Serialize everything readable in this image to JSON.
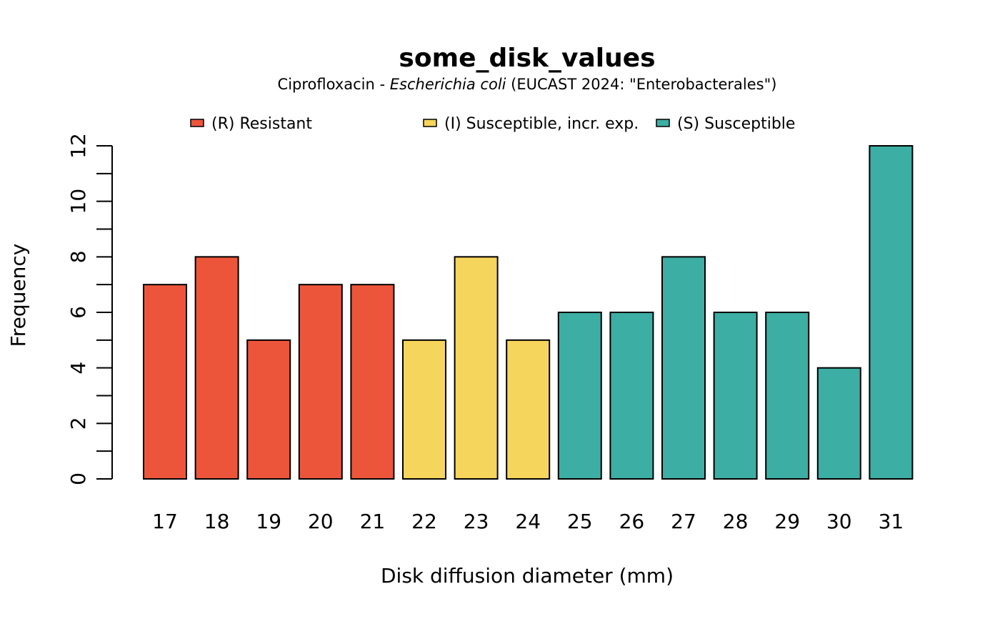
{
  "chart_data": {
    "type": "bar",
    "title": "some_disk_values",
    "subtitle": {
      "prefix": "Ciprofloxacin - ",
      "organism": "Escherichia coli",
      "suffix": " (EUCAST 2024: \"Enterobacterales\")"
    },
    "xlabel": "Disk diffusion diameter (mm)",
    "ylabel": "Frequency",
    "ylim": [
      0,
      12
    ],
    "y_ticks": [
      0,
      2,
      4,
      6,
      8,
      10,
      12
    ],
    "y_minor_ticks": [
      1,
      3,
      5,
      7,
      9,
      11
    ],
    "categories": [
      "17",
      "18",
      "19",
      "20",
      "21",
      "22",
      "23",
      "24",
      "25",
      "26",
      "27",
      "28",
      "29",
      "30",
      "31"
    ],
    "values": [
      7,
      8,
      5,
      7,
      7,
      5,
      8,
      5,
      6,
      6,
      8,
      6,
      6,
      4,
      12
    ],
    "bar_interpretation": [
      "R",
      "R",
      "R",
      "R",
      "R",
      "I",
      "I",
      "I",
      "S",
      "S",
      "S",
      "S",
      "S",
      "S",
      "S"
    ],
    "legend": {
      "placement": "top",
      "entries": [
        {
          "key": "R",
          "label": "(R) Resistant",
          "color": "#ED553B"
        },
        {
          "key": "I",
          "label": "(I) Susceptible, incr. exp.",
          "color": "#F6D55C"
        },
        {
          "key": "S",
          "label": "(S) Susceptible",
          "color": "#3CAEA3"
        }
      ]
    },
    "grid": false
  }
}
